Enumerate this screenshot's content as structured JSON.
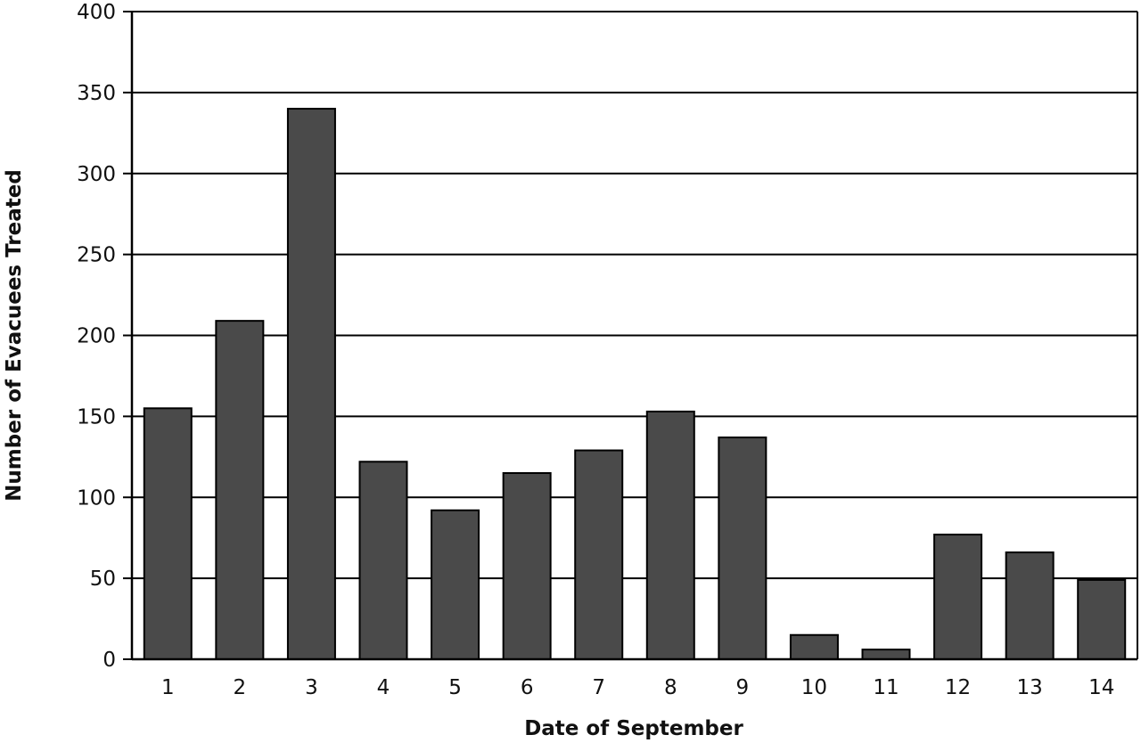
{
  "chart_data": {
    "type": "bar",
    "title": "",
    "xlabel": "Date of September",
    "ylabel": "Number of Evacuees Treated",
    "categories": [
      "1",
      "2",
      "3",
      "4",
      "5",
      "6",
      "7",
      "8",
      "9",
      "10",
      "11",
      "12",
      "13",
      "14"
    ],
    "values": [
      155,
      209,
      340,
      122,
      92,
      115,
      129,
      153,
      137,
      15,
      6,
      77,
      66,
      49
    ],
    "ylim": [
      0,
      400
    ],
    "yticks": [
      0,
      50,
      100,
      150,
      200,
      250,
      300,
      350,
      400
    ],
    "grid": "horizontal",
    "legend": "none",
    "bar_color": "#4a4a4a",
    "bar_edge_color": "#000000"
  }
}
